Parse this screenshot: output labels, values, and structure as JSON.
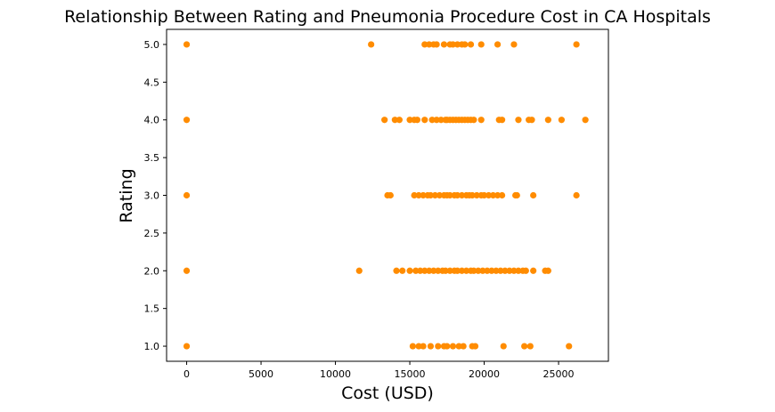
{
  "chart_data": {
    "type": "scatter",
    "title": "Relationship Between Rating and Pneumonia Procedure Cost in CA Hospitals",
    "xlabel": "Cost (USD)",
    "ylabel": "Rating",
    "xlim": [
      -1350,
      28350
    ],
    "ylim": [
      0.8,
      5.2
    ],
    "xticks": [
      0,
      5000,
      10000,
      15000,
      20000,
      25000
    ],
    "xtick_labels": [
      "0",
      "5000",
      "10000",
      "15000",
      "20000",
      "25000"
    ],
    "yticks": [
      1.0,
      1.5,
      2.0,
      2.5,
      3.0,
      3.5,
      4.0,
      4.5,
      5.0
    ],
    "ytick_labels": [
      "1.0",
      "1.5",
      "2.0",
      "2.5",
      "3.0",
      "3.5",
      "4.0",
      "4.5",
      "5.0"
    ],
    "grid": false,
    "marker_color": "#ff8c00",
    "series": [
      {
        "points": [
          [
            0,
            5
          ],
          [
            12400,
            5
          ],
          [
            16000,
            5
          ],
          [
            16300,
            5
          ],
          [
            16600,
            5
          ],
          [
            16800,
            5
          ],
          [
            17300,
            5
          ],
          [
            17700,
            5
          ],
          [
            17900,
            5
          ],
          [
            18200,
            5
          ],
          [
            18500,
            5
          ],
          [
            18700,
            5
          ],
          [
            19100,
            5
          ],
          [
            19800,
            5
          ],
          [
            20900,
            5
          ],
          [
            22000,
            5
          ],
          [
            26200,
            5
          ],
          [
            0,
            4
          ],
          [
            13300,
            4
          ],
          [
            14000,
            4
          ],
          [
            14300,
            4
          ],
          [
            15000,
            4
          ],
          [
            15300,
            4
          ],
          [
            15500,
            4
          ],
          [
            16000,
            4
          ],
          [
            16500,
            4
          ],
          [
            16800,
            4
          ],
          [
            17100,
            4
          ],
          [
            17400,
            4
          ],
          [
            17500,
            4
          ],
          [
            17700,
            4
          ],
          [
            17900,
            4
          ],
          [
            18100,
            4
          ],
          [
            18300,
            4
          ],
          [
            18500,
            4
          ],
          [
            18700,
            4
          ],
          [
            18900,
            4
          ],
          [
            19100,
            4
          ],
          [
            19300,
            4
          ],
          [
            19800,
            4
          ],
          [
            21000,
            4
          ],
          [
            21200,
            4
          ],
          [
            22300,
            4
          ],
          [
            23000,
            4
          ],
          [
            23200,
            4
          ],
          [
            24300,
            4
          ],
          [
            25200,
            4
          ],
          [
            26800,
            4
          ],
          [
            0,
            3
          ],
          [
            13500,
            3
          ],
          [
            13700,
            3
          ],
          [
            15300,
            3
          ],
          [
            15600,
            3
          ],
          [
            15900,
            3
          ],
          [
            16200,
            3
          ],
          [
            16400,
            3
          ],
          [
            16700,
            3
          ],
          [
            17000,
            3
          ],
          [
            17300,
            3
          ],
          [
            17500,
            3
          ],
          [
            17700,
            3
          ],
          [
            18000,
            3
          ],
          [
            18200,
            3
          ],
          [
            18500,
            3
          ],
          [
            18800,
            3
          ],
          [
            19000,
            3
          ],
          [
            19200,
            3
          ],
          [
            19500,
            3
          ],
          [
            19800,
            3
          ],
          [
            20000,
            3
          ],
          [
            20300,
            3
          ],
          [
            20600,
            3
          ],
          [
            20900,
            3
          ],
          [
            21200,
            3
          ],
          [
            22100,
            3
          ],
          [
            22200,
            3
          ],
          [
            23300,
            3
          ],
          [
            26200,
            3
          ],
          [
            0,
            2
          ],
          [
            11600,
            2
          ],
          [
            14100,
            2
          ],
          [
            14500,
            2
          ],
          [
            15000,
            2
          ],
          [
            15400,
            2
          ],
          [
            15700,
            2
          ],
          [
            16000,
            2
          ],
          [
            16300,
            2
          ],
          [
            16600,
            2
          ],
          [
            16900,
            2
          ],
          [
            17200,
            2
          ],
          [
            17400,
            2
          ],
          [
            17700,
            2
          ],
          [
            18000,
            2
          ],
          [
            18200,
            2
          ],
          [
            18500,
            2
          ],
          [
            18800,
            2
          ],
          [
            19100,
            2
          ],
          [
            19300,
            2
          ],
          [
            19600,
            2
          ],
          [
            19900,
            2
          ],
          [
            20200,
            2
          ],
          [
            20500,
            2
          ],
          [
            20800,
            2
          ],
          [
            21100,
            2
          ],
          [
            21400,
            2
          ],
          [
            21700,
            2
          ],
          [
            22000,
            2
          ],
          [
            22300,
            2
          ],
          [
            22600,
            2
          ],
          [
            22800,
            2
          ],
          [
            23300,
            2
          ],
          [
            24100,
            2
          ],
          [
            24300,
            2
          ],
          [
            0,
            1
          ],
          [
            15200,
            1
          ],
          [
            15600,
            1
          ],
          [
            15900,
            1
          ],
          [
            16400,
            1
          ],
          [
            16900,
            1
          ],
          [
            17300,
            1
          ],
          [
            17500,
            1
          ],
          [
            17900,
            1
          ],
          [
            18300,
            1
          ],
          [
            18600,
            1
          ],
          [
            19200,
            1
          ],
          [
            19400,
            1
          ],
          [
            21300,
            1
          ],
          [
            22700,
            1
          ],
          [
            23100,
            1
          ],
          [
            25700,
            1
          ]
        ]
      }
    ]
  }
}
